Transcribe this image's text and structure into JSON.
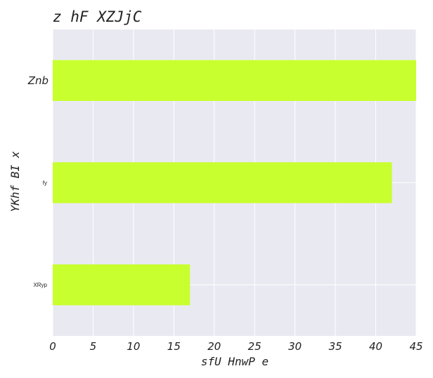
{
  "chart_data": {
    "type": "bar",
    "orientation": "horizontal",
    "title": "z hF XZJjC",
    "xlabel": "sfU HnwP e",
    "ylabel": "YKhf BI x",
    "categories": [
      "Znb",
      "fy",
      "XRyp"
    ],
    "values": [
      45,
      42,
      17
    ],
    "xlim": [
      0,
      45
    ],
    "xticks": [
      0,
      5,
      10,
      15,
      20,
      25,
      30,
      35,
      40,
      45
    ],
    "grid": true,
    "bar_color": "#c8ff2e",
    "background_color": "#e9e9f2",
    "grid_color": "#ffffff"
  }
}
